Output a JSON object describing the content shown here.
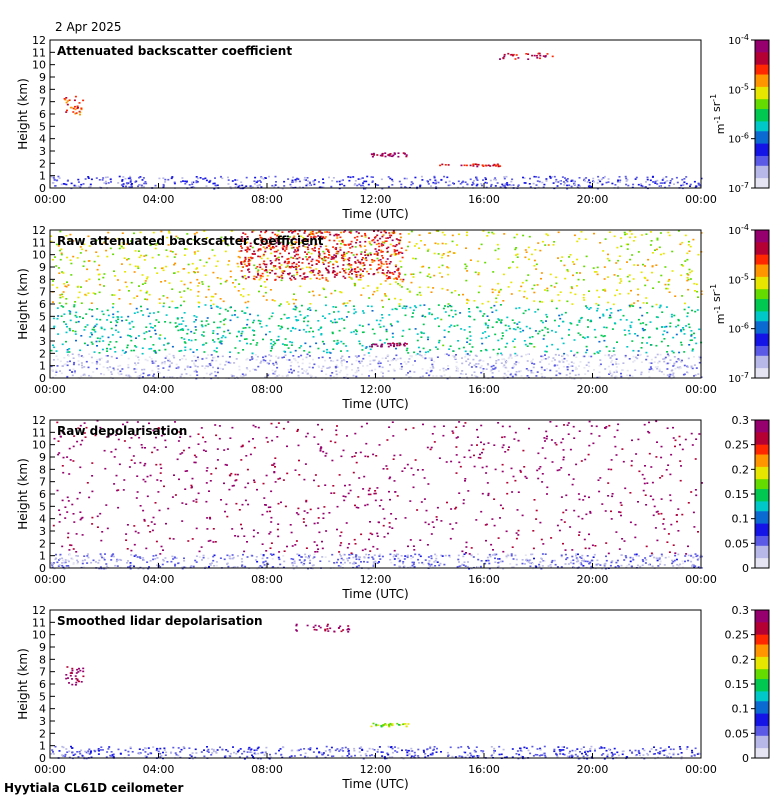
{
  "date": "2 Apr 2025",
  "footer": "Hyytiala CL61D ceilometer",
  "colors": {
    "frame": "#000000",
    "cmap": [
      "#e4e4f2",
      "#b8b8e8",
      "#5a5ae6",
      "#1414e6",
      "#0a6ad2",
      "#00c8c8",
      "#00c850",
      "#64dc00",
      "#e6e600",
      "#ff9600",
      "#ff2800",
      "#b40032",
      "#96006e"
    ]
  },
  "panels": [
    {
      "title": "Attenuated backscatter coefficient",
      "icon": "backscatter-plot",
      "chart_data": {
        "type": "heatmap",
        "title": "Attenuated backscatter coefficient",
        "xlabel": "Time (UTC)",
        "ylabel": "Height (km)",
        "xticks": [
          "00:00",
          "04:00",
          "08:00",
          "12:00",
          "16:00",
          "20:00",
          "00:00"
        ],
        "yticks": [
          "0",
          "1",
          "2",
          "3",
          "4",
          "5",
          "6",
          "7",
          "8",
          "9",
          "10",
          "11",
          "12"
        ],
        "xlim_hours": [
          0,
          24
        ],
        "ylim_km": [
          0,
          12
        ],
        "colorbar": {
          "scale": "log",
          "ticks": [
            "10-4",
            "10-5",
            "10-6",
            "10-7"
          ],
          "unit": "m-1 sr-1"
        },
        "features": [
          {
            "t0": 0.0,
            "t1": 24.0,
            "h0": 0.0,
            "h1": 1.0,
            "level": 0.2
          },
          {
            "t0": 11.8,
            "t1": 13.2,
            "h0": 2.6,
            "h1": 2.9,
            "level": 0.95
          },
          {
            "t0": 14.3,
            "t1": 16.8,
            "h0": 1.8,
            "h1": 2.0,
            "level": 0.85
          },
          {
            "t0": 0.5,
            "t1": 1.2,
            "h0": 6.0,
            "h1": 7.5,
            "level": 0.8
          },
          {
            "t0": 16.5,
            "t1": 18.5,
            "h0": 10.5,
            "h1": 11.0,
            "level": 0.9
          }
        ]
      }
    },
    {
      "title": "Raw attenuated backscatter coefficient",
      "icon": "raw-backscatter-plot",
      "chart_data": {
        "type": "heatmap",
        "title": "Raw attenuated backscatter coefficient",
        "xlabel": "Time (UTC)",
        "ylabel": "Height (km)",
        "xticks": [
          "00:00",
          "04:00",
          "08:00",
          "12:00",
          "16:00",
          "20:00",
          "00:00"
        ],
        "yticks": [
          "0",
          "1",
          "2",
          "3",
          "4",
          "5",
          "6",
          "7",
          "8",
          "9",
          "10",
          "11",
          "12"
        ],
        "xlim_hours": [
          0,
          24
        ],
        "ylim_km": [
          0,
          12
        ],
        "colorbar": {
          "scale": "log",
          "ticks": [
            "10-4",
            "10-5",
            "10-6",
            "10-7"
          ],
          "unit": "m-1 sr-1"
        },
        "features": [
          {
            "t0": 0.0,
            "t1": 24.0,
            "h0": 0.0,
            "h1": 2.0,
            "level": 0.1
          },
          {
            "t0": 0.0,
            "t1": 24.0,
            "h0": 2.0,
            "h1": 6.0,
            "level": 0.45
          },
          {
            "t0": 0.0,
            "t1": 24.0,
            "h0": 6.0,
            "h1": 12.0,
            "level": 0.65
          },
          {
            "t0": 7.0,
            "t1": 13.0,
            "h0": 8.0,
            "h1": 12.0,
            "level": 0.85
          },
          {
            "t0": 11.8,
            "t1": 13.2,
            "h0": 2.6,
            "h1": 2.9,
            "level": 0.95
          }
        ]
      }
    },
    {
      "title": "Raw depolarisation",
      "icon": "raw-depolarisation-plot",
      "chart_data": {
        "type": "heatmap",
        "title": "Raw depolarisation",
        "xlabel": "Time (UTC)",
        "ylabel": "Height (km)",
        "xticks": [
          "00:00",
          "04:00",
          "08:00",
          "12:00",
          "16:00",
          "20:00",
          "00:00"
        ],
        "yticks": [
          "0",
          "1",
          "2",
          "3",
          "4",
          "5",
          "6",
          "7",
          "8",
          "9",
          "10",
          "11",
          "12"
        ],
        "xlim_hours": [
          0,
          24
        ],
        "ylim_km": [
          0,
          12
        ],
        "colorbar": {
          "scale": "linear",
          "ticks": [
            "0",
            "0.05",
            "0.1",
            "0.15",
            "0.2",
            "0.25",
            "0.3"
          ],
          "range": [
            0,
            0.3
          ]
        },
        "features": [
          {
            "t0": 0.0,
            "t1": 24.0,
            "h0": 0.0,
            "h1": 1.2,
            "level": 0.15
          },
          {
            "t0": 0.0,
            "t1": 24.0,
            "h0": 1.2,
            "h1": 12.0,
            "level": 0.97
          }
        ]
      }
    },
    {
      "title": "Smoothed lidar depolarisation",
      "icon": "smoothed-depolarisation-plot",
      "chart_data": {
        "type": "heatmap",
        "title": "Smoothed lidar depolarisation",
        "xlabel": "Time (UTC)",
        "ylabel": "Height (km)",
        "xticks": [
          "00:00",
          "04:00",
          "08:00",
          "12:00",
          "16:00",
          "20:00",
          "00:00"
        ],
        "yticks": [
          "0",
          "1",
          "2",
          "3",
          "4",
          "5",
          "6",
          "7",
          "8",
          "9",
          "10",
          "11",
          "12"
        ],
        "xlim_hours": [
          0,
          24
        ],
        "ylim_km": [
          0,
          12
        ],
        "colorbar": {
          "scale": "linear",
          "ticks": [
            "0",
            "0.05",
            "0.1",
            "0.15",
            "0.2",
            "0.25",
            "0.3"
          ],
          "range": [
            0,
            0.3
          ]
        },
        "features": [
          {
            "t0": 0.0,
            "t1": 24.0,
            "h0": 0.0,
            "h1": 1.0,
            "level": 0.2
          },
          {
            "t0": 11.8,
            "t1": 13.2,
            "h0": 2.6,
            "h1": 2.9,
            "level": 0.6
          },
          {
            "t0": 0.5,
            "t1": 1.2,
            "h0": 6.0,
            "h1": 7.5,
            "level": 0.97
          },
          {
            "t0": 9.0,
            "t1": 11.0,
            "h0": 10.3,
            "h1": 10.9,
            "level": 0.97
          }
        ]
      }
    }
  ]
}
